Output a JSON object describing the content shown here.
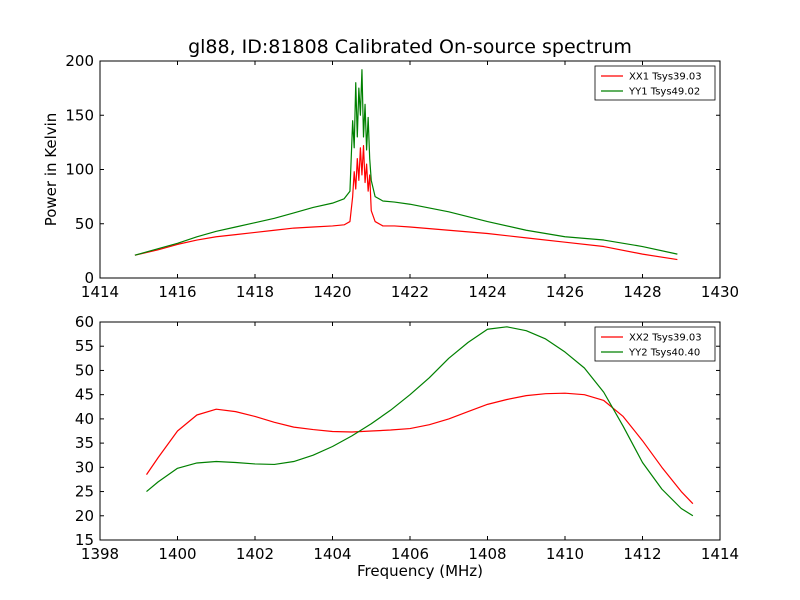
{
  "title": "gl88, ID:81808 Calibrated On-source spectrum",
  "colors": {
    "xx": "#ff0000",
    "yy": "#008000"
  },
  "chart_data": [
    {
      "type": "line",
      "xlabel": "",
      "ylabel": "Power in Kelvin",
      "xlim": [
        1414,
        1430
      ],
      "ylim": [
        0,
        200
      ],
      "xticks": [
        1414,
        1416,
        1418,
        1420,
        1422,
        1424,
        1426,
        1428,
        1430
      ],
      "yticks": [
        0,
        50,
        100,
        150,
        200
      ],
      "legend_position": "top-right",
      "grid": false,
      "series": [
        {
          "name": "XX1 Tsys39.03",
          "color": "#ff0000",
          "x": [
            1414.9,
            1415.5,
            1416.0,
            1416.5,
            1417.0,
            1417.5,
            1418.0,
            1418.5,
            1419.0,
            1419.5,
            1420.0,
            1420.3,
            1420.45,
            1420.52,
            1420.56,
            1420.6,
            1420.64,
            1420.68,
            1420.72,
            1420.76,
            1420.8,
            1420.84,
            1420.88,
            1420.92,
            1420.96,
            1421.0,
            1421.1,
            1421.3,
            1421.6,
            1422.0,
            1423.0,
            1424.0,
            1425.0,
            1426.0,
            1427.0,
            1428.0,
            1428.9
          ],
          "y": [
            21,
            26,
            31,
            35,
            38,
            40,
            42,
            44,
            46,
            47,
            48,
            49,
            52,
            75,
            98,
            82,
            110,
            90,
            120,
            95,
            122,
            88,
            105,
            80,
            95,
            62,
            52,
            48,
            48,
            47,
            44,
            41,
            37,
            33,
            29,
            22,
            17
          ]
        },
        {
          "name": "YY1 Tsys49.02",
          "color": "#008000",
          "x": [
            1414.9,
            1415.5,
            1416.0,
            1416.5,
            1417.0,
            1417.5,
            1418.0,
            1418.5,
            1419.0,
            1419.5,
            1420.0,
            1420.3,
            1420.45,
            1420.52,
            1420.56,
            1420.6,
            1420.64,
            1420.68,
            1420.72,
            1420.76,
            1420.8,
            1420.84,
            1420.88,
            1420.92,
            1420.96,
            1421.0,
            1421.1,
            1421.3,
            1421.6,
            1422.0,
            1423.0,
            1424.0,
            1425.0,
            1426.0,
            1427.0,
            1428.0,
            1428.9
          ],
          "y": [
            21,
            27,
            32,
            38,
            43,
            47,
            51,
            55,
            60,
            65,
            69,
            73,
            80,
            145,
            120,
            180,
            130,
            175,
            150,
            192,
            130,
            160,
            118,
            148,
            110,
            90,
            75,
            71,
            70,
            68,
            61,
            52,
            44,
            38,
            35,
            29,
            22
          ]
        }
      ]
    },
    {
      "type": "line",
      "xlabel": "Frequency (MHz)",
      "ylabel": "",
      "xlim": [
        1398,
        1414
      ],
      "ylim": [
        15,
        60
      ],
      "xticks": [
        1398,
        1400,
        1402,
        1404,
        1406,
        1408,
        1410,
        1412,
        1414
      ],
      "yticks": [
        15,
        20,
        25,
        30,
        35,
        40,
        45,
        50,
        55,
        60
      ],
      "legend_position": "top-right",
      "grid": false,
      "series": [
        {
          "name": "XX2 Tsys39.03",
          "color": "#ff0000",
          "x": [
            1399.2,
            1399.5,
            1400.0,
            1400.5,
            1401.0,
            1401.5,
            1402.0,
            1402.5,
            1403.0,
            1403.5,
            1404.0,
            1404.5,
            1405.0,
            1405.5,
            1406.0,
            1406.5,
            1407.0,
            1407.5,
            1408.0,
            1408.5,
            1409.0,
            1409.5,
            1410.0,
            1410.5,
            1411.0,
            1411.5,
            1412.0,
            1412.5,
            1413.0,
            1413.3
          ],
          "y": [
            28.5,
            32,
            37.5,
            40.8,
            42.0,
            41.5,
            40.5,
            39.3,
            38.3,
            37.8,
            37.4,
            37.3,
            37.5,
            37.7,
            38.0,
            38.8,
            40.0,
            41.5,
            43.0,
            44.0,
            44.8,
            45.2,
            45.3,
            45.0,
            43.8,
            40.5,
            35.5,
            30.0,
            25.0,
            22.5
          ]
        },
        {
          "name": "YY2 Tsys40.40",
          "color": "#008000",
          "x": [
            1399.2,
            1399.5,
            1400.0,
            1400.5,
            1401.0,
            1401.5,
            1402.0,
            1402.5,
            1403.0,
            1403.5,
            1404.0,
            1404.5,
            1405.0,
            1405.5,
            1406.0,
            1406.5,
            1407.0,
            1407.5,
            1408.0,
            1408.5,
            1409.0,
            1409.5,
            1410.0,
            1410.5,
            1411.0,
            1411.5,
            1412.0,
            1412.5,
            1413.0,
            1413.3
          ],
          "y": [
            25.0,
            27.0,
            29.8,
            30.9,
            31.2,
            31.0,
            30.7,
            30.6,
            31.2,
            32.5,
            34.3,
            36.5,
            39.0,
            41.8,
            45.0,
            48.5,
            52.5,
            55.8,
            58.5,
            59.0,
            58.2,
            56.5,
            53.8,
            50.5,
            45.5,
            38.5,
            31.0,
            25.5,
            21.5,
            20.0
          ]
        }
      ]
    }
  ]
}
